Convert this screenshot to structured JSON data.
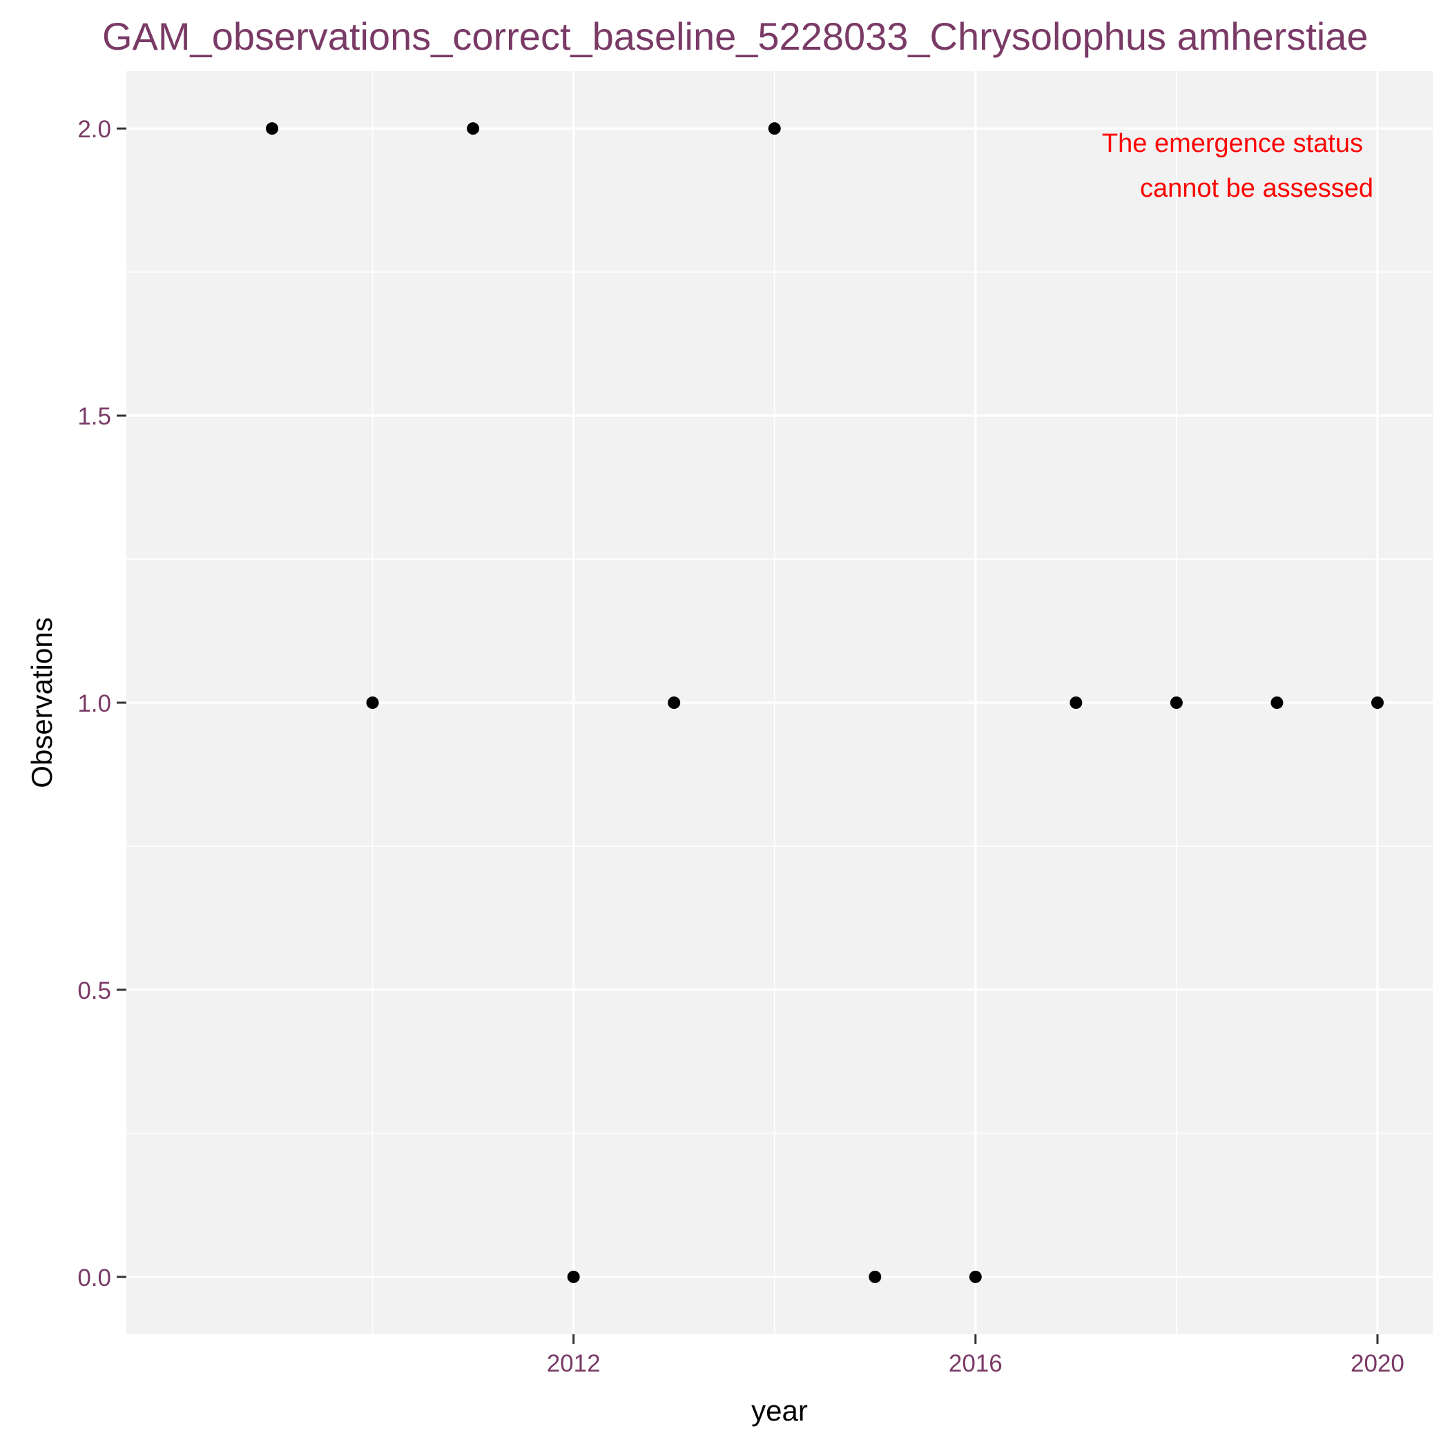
{
  "chart_data": {
    "type": "scatter",
    "title": "GAM_observations_correct_baseline_5228033_Chrysolophus amherstiae",
    "xlabel": "year",
    "ylabel": "Observations",
    "x_ticks": [
      2012,
      2016,
      2020
    ],
    "x_tick_labels": [
      "2012",
      "2016",
      "2020"
    ],
    "y_ticks": [
      0.0,
      0.5,
      1.0,
      1.5,
      2.0
    ],
    "y_tick_labels": [
      "0.0",
      "0.5",
      "1.0",
      "1.5",
      "2.0"
    ],
    "xlim": [
      2007.55,
      2020.55
    ],
    "ylim": [
      -0.1,
      2.1
    ],
    "grid": true,
    "points": [
      {
        "x": 2009,
        "y": 2
      },
      {
        "x": 2010,
        "y": 1
      },
      {
        "x": 2011,
        "y": 2
      },
      {
        "x": 2012,
        "y": 0
      },
      {
        "x": 2013,
        "y": 1
      },
      {
        "x": 2014,
        "y": 2
      },
      {
        "x": 2015,
        "y": 0
      },
      {
        "x": 2016,
        "y": 0
      },
      {
        "x": 2017,
        "y": 1
      },
      {
        "x": 2018,
        "y": 1
      },
      {
        "x": 2019,
        "y": 1
      },
      {
        "x": 2020,
        "y": 1
      }
    ],
    "annotation": {
      "lines": [
        "The emergence status",
        "cannot be assessed"
      ],
      "color": "#ff0000"
    },
    "colors": {
      "title": "#7a3a66",
      "tick_labels": "#7a3a66",
      "panel": "#f2f2f2",
      "grid": "#ffffff",
      "points": "#000000",
      "axis_title": "#000000"
    }
  }
}
